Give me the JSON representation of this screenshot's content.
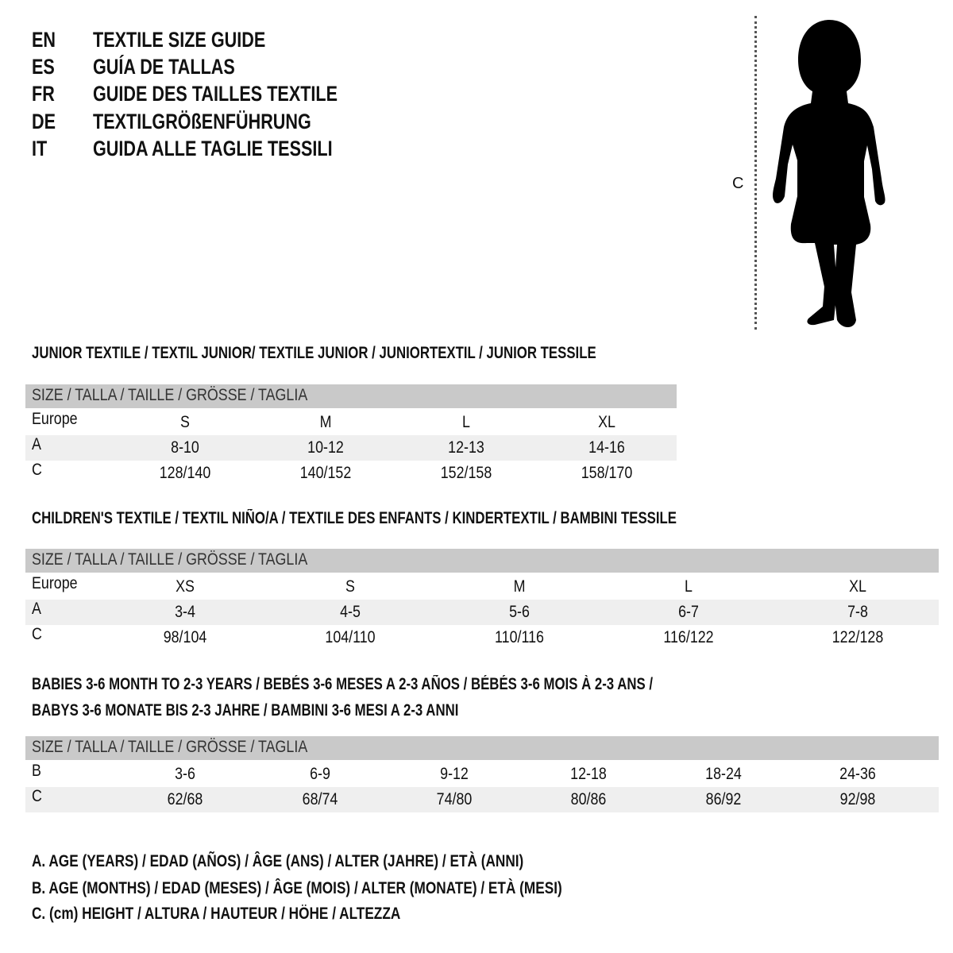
{
  "titles": [
    {
      "code": "EN",
      "text": "TEXTILE SIZE GUIDE"
    },
    {
      "code": "ES",
      "text": "GUÍA DE TALLAS"
    },
    {
      "code": "FR",
      "text": "GUIDE DES TAILLES TEXTILE"
    },
    {
      "code": "DE",
      "text": "TEXTILGRÖßENFÜHRUNG"
    },
    {
      "code": "IT",
      "text": "GUIDA ALLE TAGLIE TESSILI"
    }
  ],
  "figure": {
    "height_label": "C"
  },
  "sections": [
    {
      "heading": "JUNIOR TEXTILE / TEXTIL JUNIOR/ TEXTILE JUNIOR / JUNIORTEXTIL / JUNIOR TESSILE",
      "header": "SIZE / TALLA / TAILLE / GRÖSSE / TAGLIA",
      "rows": [
        {
          "label": "Europe",
          "values": [
            "S",
            "M",
            "L",
            "XL"
          ]
        },
        {
          "label": "A",
          "values": [
            "8-10",
            "10-12",
            "12-13",
            "14-16"
          ]
        },
        {
          "label": "C",
          "values": [
            "128/140",
            "140/152",
            "152/158",
            "158/170"
          ]
        }
      ]
    },
    {
      "heading": "CHILDREN'S TEXTILE / TEXTIL NIÑO/A / TEXTILE DES ENFANTS / KINDERTEXTIL / BAMBINI TESSILE",
      "header": "SIZE / TALLA / TAILLE / GRÖSSE / TAGLIA",
      "rows": [
        {
          "label": "Europe",
          "values": [
            "XS",
            "S",
            "M",
            "L",
            "XL"
          ]
        },
        {
          "label": "A",
          "values": [
            "3-4",
            "4-5",
            "5-6",
            "6-7",
            "7-8"
          ]
        },
        {
          "label": "C",
          "values": [
            "98/104",
            "104/110",
            "110/116",
            "116/122",
            "122/128"
          ]
        }
      ]
    },
    {
      "heading": "BABIES 3-6 MONTH TO 2-3 YEARS / BEBÉS 3-6 MESES A 2-3 AÑOS / BÉBÉS 3-6 MOIS À 2-3 ANS /",
      "heading2": "BABYS 3-6 MONATE BIS 2-3 JAHRE / BAMBINI 3-6 MESI A 2-3 ANNI",
      "header": "SIZE / TALLA / TAILLE / GRÖSSE / TAGLIA",
      "rows": [
        {
          "label": "B",
          "values": [
            "3-6",
            "6-9",
            "9-12",
            "12-18",
            "18-24",
            "24-36"
          ]
        },
        {
          "label": "C",
          "values": [
            "62/68",
            "68/74",
            "74/80",
            "80/86",
            "86/92",
            "92/98"
          ]
        }
      ]
    }
  ],
  "legend": [
    "A. AGE (YEARS) / EDAD (AÑOS) / ÂGE (ANS) / ALTER (JAHRE) / ETÀ (ANNI)",
    "B. AGE (MONTHS) / EDAD (MESES) / ÂGE (MOIS) / ALTER (MONATE) / ETÀ (MESI)",
    "C. (cm) HEIGHT / ALTURA / HAUTEUR / HÖHE / ALTEZZA"
  ]
}
